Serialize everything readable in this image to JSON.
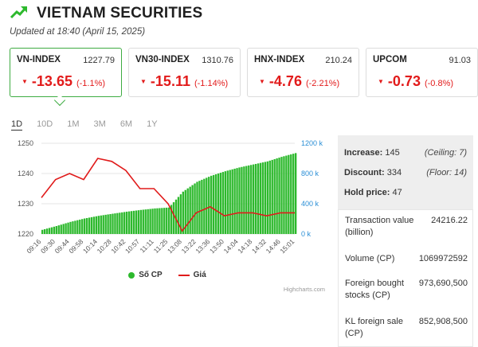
{
  "header": {
    "title": "VIETNAM SECURITIES",
    "icon": "trend-up-icon",
    "accent": "#2db92d"
  },
  "updated": "Updated at 18:40 (April 15, 2025)",
  "indices": [
    {
      "name": "VN-INDEX",
      "value": "1227.79",
      "change": "-13.65",
      "pct": "(-1.1%)"
    },
    {
      "name": "VN30-INDEX",
      "value": "1310.76",
      "change": "-15.11",
      "pct": "(-1.14%)"
    },
    {
      "name": "HNX-INDEX",
      "value": "210.24",
      "change": "-4.76",
      "pct": "(-2.21%)"
    },
    {
      "name": "UPCOM",
      "value": "91.03",
      "change": "-0.73",
      "pct": "(-0.8%)"
    }
  ],
  "tabs": [
    "1D",
    "10D",
    "1M",
    "3M",
    "6M",
    "1Y"
  ],
  "legend": {
    "volume": "Số CP",
    "price": "Giá"
  },
  "credit": "Highcharts.com",
  "stats": {
    "increase_label": "Increase:",
    "increase_value": "145",
    "ceiling": "(Ceiling: 7)",
    "discount_label": "Discount:",
    "discount_value": "334",
    "floor": "(Floor: 14)",
    "hold_label": "Hold price:",
    "hold_value": "47"
  },
  "transactions": [
    {
      "label": "Transaction value (billion)",
      "value": "24216.22"
    },
    {
      "label": "Volume (CP)",
      "value": "1069972592"
    },
    {
      "label": "Foreign bought stocks (CP)",
      "value": "973,690,500"
    },
    {
      "label": "KL foreign sale (CP)",
      "value": "852,908,500"
    }
  ],
  "chart_data": {
    "type": "line",
    "x": [
      "09:16",
      "09:30",
      "09:44",
      "09:58",
      "10:14",
      "10:28",
      "10:42",
      "10:57",
      "11:11",
      "11:25",
      "13:08",
      "13:22",
      "13:36",
      "13:50",
      "14:04",
      "14:18",
      "14:32",
      "14:46",
      "15:01"
    ],
    "y_left_ticks": [
      "1250",
      "1240",
      "1230",
      "1220"
    ],
    "y_right_ticks": [
      "1200 k",
      "800 k",
      "400 k",
      "0 k"
    ],
    "ylim_left": [
      1220,
      1250
    ],
    "ylim_right": [
      0,
      1200
    ],
    "series": [
      {
        "name": "Số CP",
        "kind": "column",
        "axis": "right",
        "color": "#2db92d",
        "values": [
          55,
          105,
          160,
          205,
          240,
          268,
          295,
          318,
          338,
          350,
          560,
          690,
          770,
          830,
          880,
          920,
          960,
          1020,
          1070
        ]
      },
      {
        "name": "Giá",
        "kind": "line",
        "axis": "left",
        "color": "#e01b1b",
        "values": [
          1232,
          1238,
          1240,
          1238,
          1245,
          1244,
          1241,
          1235,
          1235,
          1230,
          1221,
          1227,
          1229,
          1226,
          1227,
          1227,
          1226,
          1227,
          1227
        ]
      }
    ]
  }
}
